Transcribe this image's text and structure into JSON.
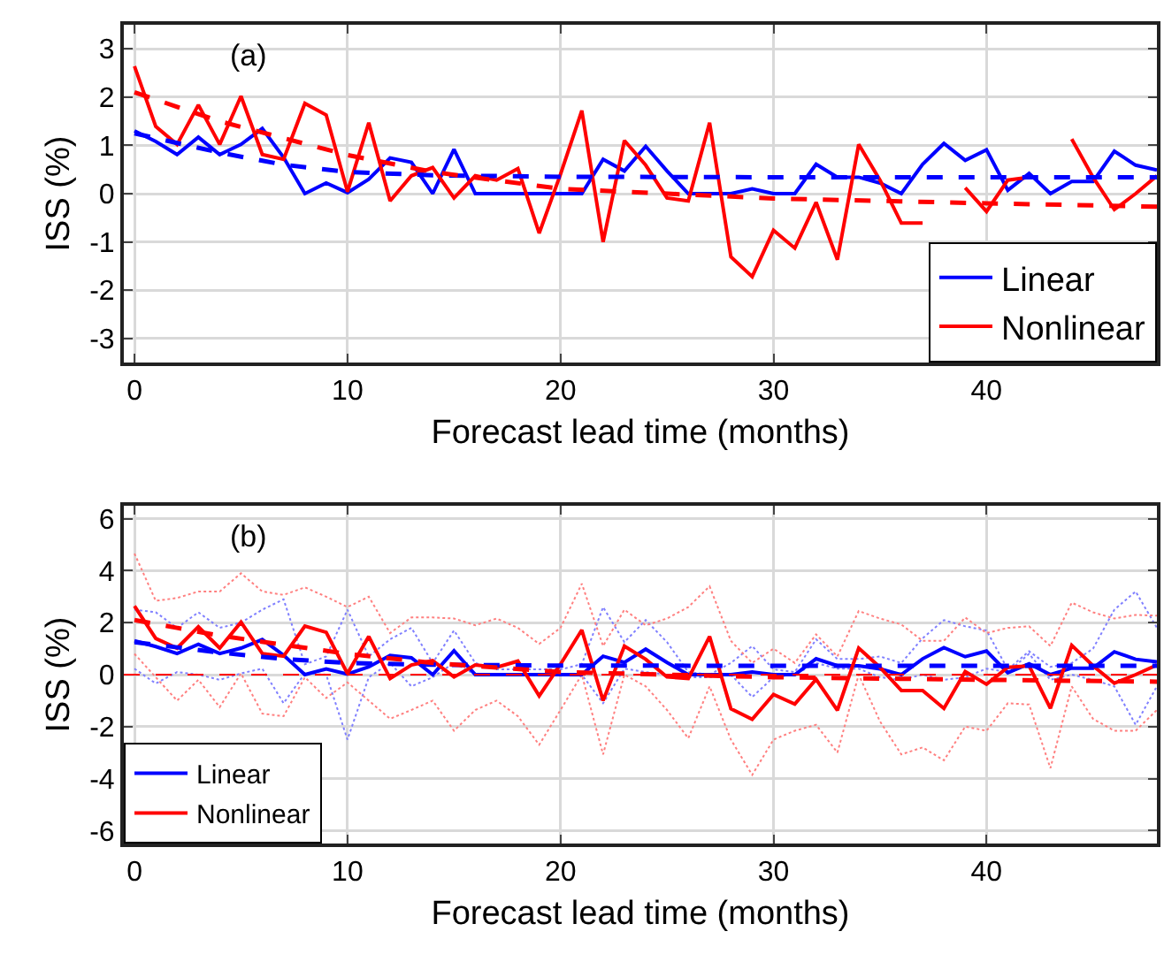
{
  "chart_data": [
    {
      "type": "line",
      "xlabel": "Forecast lead time (months)",
      "ylabel": "ISS (%)",
      "annotations": [
        "(a)"
      ],
      "grid": true,
      "legend": "bottom right",
      "marker": "none",
      "x": [
        0,
        1,
        2,
        3,
        4,
        5,
        6,
        7,
        8,
        9,
        10,
        11,
        12,
        13,
        14,
        15,
        16,
        17,
        18,
        19,
        20,
        21,
        22,
        23,
        24,
        25,
        26,
        27,
        28,
        29,
        30,
        31,
        32,
        33,
        34,
        35,
        36,
        37,
        38,
        39,
        40,
        41,
        42,
        43,
        44,
        45,
        46,
        47,
        48
      ],
      "xlim": [
        -0.5,
        48
      ],
      "xticks": [
        0,
        10,
        20,
        30,
        40
      ],
      "ylim": [
        -3.5,
        3.5
      ],
      "yticks": [
        -3,
        -2,
        -1,
        0,
        1,
        2,
        3
      ],
      "series": [
        {
          "name": "Linear",
          "color": "#0000ff",
          "values": [
            1.3,
            1.08,
            0.81,
            1.17,
            0.81,
            1.02,
            1.35,
            0.75,
            0,
            0.22,
            0.02,
            0.3,
            0.74,
            0.65,
            0,
            0.92,
            0,
            0,
            0,
            0,
            0,
            0,
            0.71,
            0.47,
            0.98,
            0.47,
            0,
            0,
            0,
            0.1,
            0,
            0,
            0.61,
            0.34,
            0.34,
            0.22,
            0,
            0.61,
            1.04,
            0.69,
            0.91,
            0.07,
            0.42,
            0,
            0.25,
            0.25,
            0.88,
            0.59,
            0.49
          ]
        },
        {
          "name": "Nonlinear",
          "color": "#ff0000",
          "values": [
            2.64,
            1.39,
            1.02,
            1.84,
            1.02,
            2.02,
            0.81,
            0.71,
            1.87,
            1.63,
            0.04,
            1.47,
            -0.15,
            0.37,
            0.54,
            -0.09,
            0.37,
            0.28,
            0.52,
            -0.82,
            0.4,
            1.72,
            -1.0,
            1.1,
            0.59,
            -0.09,
            -0.15,
            1.47,
            -1.31,
            -1.72,
            -0.76,
            -1.13,
            -0.18,
            -1.37,
            1.02,
            0.28,
            -0.61,
            -0.61,
            null,
            0.12,
            -0.37,
            0.28,
            0.34,
            null,
            1.13,
            0.34,
            -0.33,
            0,
            0.37
          ]
        },
        {
          "color": "#0000ff",
          "line_style": "dashed",
          "x": [
            0,
            2,
            4,
            7,
            10,
            14,
            20,
            30,
            40,
            48
          ],
          "values": [
            1.25,
            1.05,
            0.85,
            0.6,
            0.45,
            0.38,
            0.35,
            0.34,
            0.34,
            0.34
          ]
        },
        {
          "color": "#ff0000",
          "line_style": "dashed",
          "x": [
            0,
            2,
            4,
            7,
            10,
            14,
            20,
            30,
            40,
            48
          ],
          "values": [
            2.1,
            1.8,
            1.5,
            1.15,
            0.8,
            0.45,
            0.1,
            -0.1,
            -0.2,
            -0.27
          ]
        }
      ]
    },
    {
      "type": "line",
      "xlabel": "Forecast lead time (months)",
      "ylabel": "ISS (%)",
      "annotations": [
        "(b)"
      ],
      "grid": true,
      "legend": "bottom left",
      "marker": "none",
      "x": [
        0,
        1,
        2,
        3,
        4,
        5,
        6,
        7,
        8,
        9,
        10,
        11,
        12,
        13,
        14,
        15,
        16,
        17,
        18,
        19,
        20,
        21,
        22,
        23,
        24,
        25,
        26,
        27,
        28,
        29,
        30,
        31,
        32,
        33,
        34,
        35,
        36,
        37,
        38,
        39,
        40,
        41,
        42,
        43,
        44,
        45,
        46,
        47,
        48
      ],
      "xlim": [
        -0.5,
        48
      ],
      "xticks": [
        0,
        10,
        20,
        30,
        40
      ],
      "ylim": [
        -6.5,
        6.5
      ],
      "yticks": [
        -6,
        -4,
        -2,
        0,
        2,
        4,
        6
      ],
      "ref_lines": [
        {
          "axis": "y",
          "value": 0,
          "color": "#ff0000",
          "line_style": "dashed"
        }
      ],
      "series": [
        {
          "color": "#8080ff",
          "line_style": "dotted",
          "values": [
            2.5,
            2.4,
            1.8,
            2.4,
            1.8,
            2.0,
            2.5,
            2.9,
            0.4,
            0.7,
            2.5,
            0.7,
            1.36,
            1.8,
            0.45,
            1.7,
            0.45,
            0.2,
            0.2,
            0.2,
            0.2,
            0.4,
            2.6,
            1.25,
            2.1,
            1.25,
            0.1,
            0,
            0.45,
            1.1,
            0.2,
            0.1,
            1.36,
            0.6,
            0.6,
            0.7,
            0.45,
            1.4,
            2.1,
            1.86,
            1.7,
            0.2,
            0.9,
            0.3,
            0.45,
            1.0,
            2.5,
            3.2,
            1.8
          ]
        },
        {
          "color": "#8080ff",
          "line_style": "dotted",
          "values": [
            0.23,
            -0.34,
            0.1,
            0,
            -0.2,
            0.05,
            0.23,
            -1.1,
            0.05,
            0,
            -2.5,
            -0.1,
            0.45,
            -0.45,
            -0.1,
            0.45,
            0,
            0,
            0,
            0,
            0,
            0,
            -1.1,
            0.23,
            0.1,
            0,
            -0.1,
            -0.1,
            0,
            -0.86,
            -0.1,
            0,
            0.45,
            0.23,
            0.23,
            -0.1,
            -0.2,
            0,
            -0.2,
            -0.1,
            0.23,
            0.1,
            0.8,
            -0.2,
            0,
            -0.2,
            -0.45,
            -1.93,
            -0.45
          ]
        },
        {
          "color": "#ff8080",
          "line_style": "dotted",
          "values": [
            4.66,
            2.84,
            2.95,
            3.2,
            3.2,
            3.9,
            3.2,
            3.07,
            3.36,
            3.0,
            2.6,
            3.0,
            1.6,
            2.2,
            2.2,
            2.16,
            1.9,
            2.16,
            1.8,
            1.18,
            1.8,
            3.5,
            1.1,
            2.5,
            1.9,
            2.16,
            2.6,
            3.4,
            1.3,
            0.45,
            1.0,
            0.45,
            1.55,
            0.7,
            2.45,
            2.16,
            1.93,
            1.3,
            1.3,
            2.2,
            1.6,
            1.8,
            1.86,
            1.1,
            2.77,
            2.4,
            2.16,
            2.3,
            2.27
          ]
        },
        {
          "color": "#ff8080",
          "line_style": "dotted",
          "values": [
            0.8,
            -0.1,
            -1.0,
            -0.2,
            -1.25,
            0.05,
            -1.5,
            -1.6,
            -0.1,
            -0.9,
            -0.3,
            -1.0,
            -1.7,
            -1.36,
            -1.0,
            -2.16,
            -1.36,
            -1.0,
            -1.6,
            -2.7,
            -1.36,
            0,
            -3.07,
            0,
            -0.45,
            -1.36,
            -2.45,
            -0.45,
            -2.5,
            -3.86,
            -2.5,
            -2.16,
            -1.93,
            -3.0,
            0,
            -1.8,
            -3.07,
            -2.8,
            -3.3,
            -2.0,
            -2.16,
            -1.1,
            -1.15,
            -3.6,
            -0.45,
            -1.7,
            -2.16,
            -2.16,
            -1.36
          ]
        },
        {
          "name": "Linear",
          "color": "#0000ff",
          "values": [
            1.3,
            1.08,
            0.81,
            1.17,
            0.81,
            1.02,
            1.35,
            0.75,
            0,
            0.22,
            0.02,
            0.3,
            0.74,
            0.65,
            0,
            0.92,
            0,
            0,
            0,
            0,
            0,
            0,
            0.71,
            0.47,
            0.98,
            0.47,
            0,
            0,
            0,
            0.1,
            0,
            0,
            0.61,
            0.34,
            0.34,
            0.22,
            0,
            0.61,
            1.04,
            0.69,
            0.91,
            0.07,
            0.42,
            0,
            0.25,
            0.25,
            0.88,
            0.59,
            0.49
          ]
        },
        {
          "name": "Nonlinear",
          "color": "#ff0000",
          "values": [
            2.64,
            1.39,
            1.02,
            1.84,
            1.02,
            2.02,
            0.81,
            0.71,
            1.87,
            1.63,
            0.04,
            1.47,
            -0.15,
            0.37,
            0.54,
            -0.09,
            0.37,
            0.28,
            0.52,
            -0.82,
            0.4,
            1.72,
            -1.0,
            1.1,
            0.59,
            -0.09,
            -0.15,
            1.47,
            -1.31,
            -1.72,
            -0.76,
            -1.13,
            -0.18,
            -1.37,
            1.02,
            0.28,
            -0.61,
            -0.61,
            -1.3,
            0.12,
            -0.37,
            0.28,
            0.34,
            -1.3,
            1.13,
            0.34,
            -0.33,
            0,
            0.37
          ]
        },
        {
          "color": "#0000ff",
          "line_style": "dashed",
          "x": [
            0,
            2,
            4,
            7,
            10,
            14,
            20,
            30,
            40,
            48
          ],
          "values": [
            1.25,
            1.05,
            0.85,
            0.6,
            0.45,
            0.38,
            0.35,
            0.34,
            0.34,
            0.34
          ]
        },
        {
          "color": "#ff0000",
          "line_style": "dashed",
          "x": [
            0,
            2,
            4,
            7,
            10,
            14,
            20,
            30,
            40,
            48
          ],
          "values": [
            2.1,
            1.8,
            1.5,
            1.15,
            0.8,
            0.45,
            0.1,
            -0.1,
            -0.2,
            -0.27
          ]
        }
      ]
    }
  ]
}
